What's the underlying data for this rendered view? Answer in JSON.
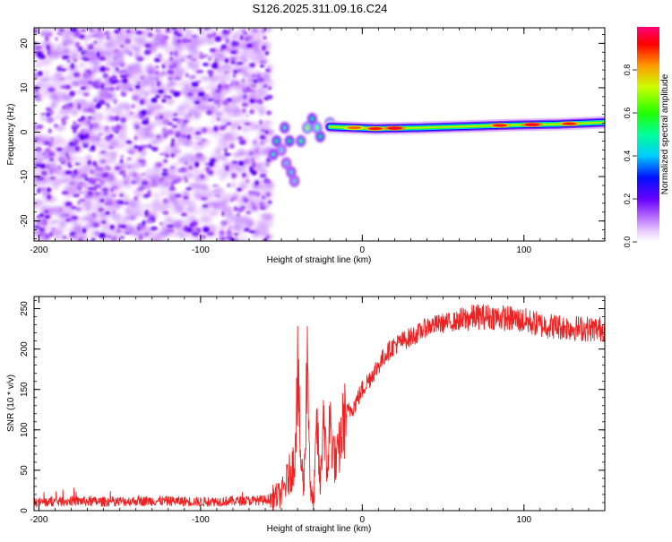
{
  "title": "S126.2025.311.09.16.C24",
  "chart_data": [
    {
      "type": "heatmap",
      "xlabel": "Height of straight line (km)",
      "ylabel": "Frequency (Hz)",
      "xlim": [
        -203,
        150
      ],
      "ylim": [
        -24.5,
        23.5
      ],
      "xticks": [
        -200,
        -100,
        0,
        100
      ],
      "yticks": [
        -20,
        -10,
        0,
        10,
        20
      ],
      "noise_region_x": [
        -203,
        -57
      ],
      "noise_region_y": [
        -24.5,
        23.5
      ],
      "transition_blobs": [
        {
          "x": -55,
          "y": -5,
          "v": 0.18
        },
        {
          "x": -53,
          "y": -2,
          "v": 0.25
        },
        {
          "x": -50,
          "y": -4,
          "v": 0.1
        },
        {
          "x": -47,
          "y": -7,
          "v": 0.12
        },
        {
          "x": -44,
          "y": -9,
          "v": 0.15
        },
        {
          "x": -42,
          "y": -11,
          "v": 0.12
        },
        {
          "x": -48,
          "y": 1,
          "v": 0.2
        },
        {
          "x": -45,
          "y": -2,
          "v": 0.3
        },
        {
          "x": -38,
          "y": -2,
          "v": 0.35
        },
        {
          "x": -34,
          "y": 1,
          "v": 0.45
        },
        {
          "x": -31,
          "y": 3,
          "v": 0.25
        },
        {
          "x": -28,
          "y": 1,
          "v": 0.4
        },
        {
          "x": -26,
          "y": -1,
          "v": 0.3
        },
        {
          "x": -20,
          "y": 2,
          "v": 0.45
        }
      ],
      "ridge": {
        "x_start": -20,
        "x_end": 150,
        "y": [
          1.2,
          0.8,
          1.0,
          1.3,
          1.6,
          1.8,
          2.2
        ],
        "hotspots": [
          {
            "x": -5,
            "v": 0.85
          },
          {
            "x": 8,
            "v": 0.9
          },
          {
            "x": 20,
            "v": 0.95
          },
          {
            "x": 85,
            "v": 0.9
          },
          {
            "x": 105,
            "v": 0.95
          },
          {
            "x": 128,
            "v": 0.9
          }
        ]
      },
      "colorbar": {
        "label": "Normalized spectral amplitude",
        "range": [
          0,
          1
        ],
        "ticks": [
          "0.0",
          "0.2",
          "0.4",
          "0.6",
          "0.8"
        ]
      }
    },
    {
      "type": "line",
      "xlabel": "Height of straight line (km)",
      "ylabel": "SNR (10 * v/v)",
      "xlim": [
        -203,
        150
      ],
      "ylim": [
        0,
        265
      ],
      "xticks": [
        -200,
        -100,
        0,
        100
      ],
      "yticks": [
        0,
        50,
        100,
        150,
        200,
        250
      ],
      "series": [
        {
          "name": "SNR",
          "color": "#ee2222",
          "x": [
            -203,
            -180,
            -160,
            -140,
            -120,
            -100,
            -80,
            -60,
            -50,
            -45,
            -42,
            -40,
            -38,
            -36,
            -34,
            -32,
            -30,
            -28,
            -26,
            -24,
            -22,
            -20,
            -18,
            -16,
            -14,
            -12,
            -10,
            -5,
            0,
            5,
            10,
            15,
            20,
            25,
            30,
            35,
            40,
            50,
            60,
            70,
            80,
            90,
            100,
            110,
            120,
            130,
            140,
            150
          ],
          "y": [
            10,
            12,
            11,
            12,
            12,
            11,
            12,
            13,
            20,
            45,
            60,
            170,
            60,
            30,
            200,
            20,
            10,
            110,
            25,
            130,
            40,
            110,
            75,
            55,
            80,
            105,
            120,
            130,
            150,
            165,
            180,
            195,
            205,
            210,
            215,
            220,
            228,
            232,
            235,
            240,
            240,
            238,
            235,
            230,
            228,
            226,
            225,
            225
          ]
        }
      ]
    }
  ]
}
